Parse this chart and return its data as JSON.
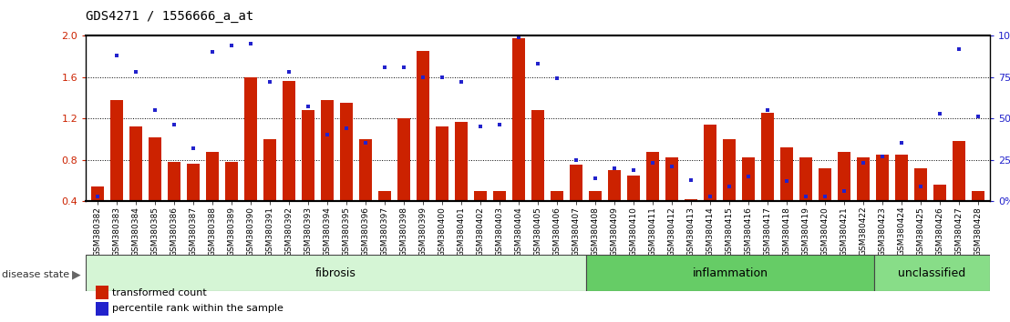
{
  "title": "GDS4271 / 1556666_a_at",
  "samples": [
    "GSM380382",
    "GSM380383",
    "GSM380384",
    "GSM380385",
    "GSM380386",
    "GSM380387",
    "GSM380388",
    "GSM380389",
    "GSM380390",
    "GSM380391",
    "GSM380392",
    "GSM380393",
    "GSM380394",
    "GSM380395",
    "GSM380396",
    "GSM380397",
    "GSM380398",
    "GSM380399",
    "GSM380400",
    "GSM380401",
    "GSM380402",
    "GSM380403",
    "GSM380404",
    "GSM380405",
    "GSM380406",
    "GSM380407",
    "GSM380408",
    "GSM380409",
    "GSM380410",
    "GSM380411",
    "GSM380412",
    "GSM380413",
    "GSM380414",
    "GSM380415",
    "GSM380416",
    "GSM380417",
    "GSM380418",
    "GSM380419",
    "GSM380420",
    "GSM380421",
    "GSM380422",
    "GSM380423",
    "GSM380424",
    "GSM380425",
    "GSM380426",
    "GSM380427",
    "GSM380428"
  ],
  "bar_values": [
    0.54,
    1.38,
    1.12,
    1.02,
    0.78,
    0.76,
    0.88,
    0.78,
    1.6,
    1.0,
    1.56,
    1.28,
    1.38,
    1.35,
    1.0,
    0.5,
    1.2,
    1.85,
    1.12,
    1.17,
    0.5,
    0.5,
    1.97,
    1.28,
    0.5,
    0.75,
    0.5,
    0.7,
    0.65,
    0.88,
    0.82,
    0.42,
    1.14,
    1.0,
    0.82,
    1.25,
    0.92,
    0.82,
    0.72,
    0.88,
    0.82,
    0.85,
    0.85,
    0.72,
    0.56,
    0.98,
    0.5
  ],
  "dot_pct": [
    3,
    88,
    78,
    55,
    46,
    32,
    90,
    94,
    95,
    72,
    78,
    57,
    40,
    44,
    35,
    81,
    81,
    75,
    75,
    72,
    45,
    46,
    99,
    83,
    74,
    25,
    14,
    20,
    19,
    23,
    21,
    13,
    3,
    9,
    15,
    55,
    12,
    3,
    3,
    6,
    23,
    27,
    35,
    9,
    53,
    92,
    51
  ],
  "groups": [
    {
      "label": "fibrosis",
      "start": 0,
      "end": 26,
      "color": "#d5f5d5"
    },
    {
      "label": "inflammation",
      "start": 26,
      "end": 41,
      "color": "#66cc66"
    },
    {
      "label": "unclassified",
      "start": 41,
      "end": 47,
      "color": "#88dd88"
    }
  ],
  "ylim": [
    0.4,
    2.0
  ],
  "yticks_left": [
    0.4,
    0.8,
    1.2,
    1.6,
    2.0
  ],
  "yticks_right_pct": [
    0,
    25,
    50,
    75,
    100
  ],
  "hlines": [
    0.8,
    1.2,
    1.6
  ],
  "bar_color": "#cc2200",
  "dot_color": "#2222cc",
  "bar_bottom": 0.4,
  "plot_bg": "#ffffff",
  "title_fontsize": 10,
  "tick_fontsize": 6.5,
  "group_label_fontsize": 9
}
